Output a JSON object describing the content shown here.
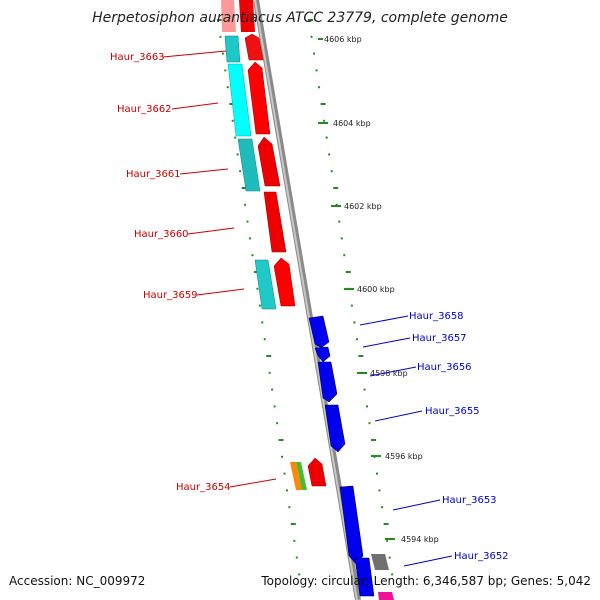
{
  "title": "Herpetosiphon aurantiacus ATCC 23779, complete genome",
  "footer": {
    "accession_label": "Accession: NC_009972",
    "summary": "Topology: circular; Length: 6,346,587 bp; Genes: 5,042"
  },
  "colors": {
    "reverse_label": "#cc0000",
    "forward_label": "#0000cc",
    "forward_gene": "#0000ee",
    "reverse_gene": "#ee0000",
    "cog_cyan": "#00cccc",
    "backbone": "#888888",
    "tick": "#228b22"
  },
  "kbp_ticks": [
    {
      "label": "4606 kbp"
    },
    {
      "label": "4604 kbp"
    },
    {
      "label": "4602 kbp"
    },
    {
      "label": "4600 kbp"
    },
    {
      "label": "4598 kbp"
    },
    {
      "label": "4596 kbp"
    },
    {
      "label": "4594 kbp"
    }
  ],
  "reverse_genes": [
    {
      "label": "Haur_3663"
    },
    {
      "label": "Haur_3662"
    },
    {
      "label": "Haur_3661"
    },
    {
      "label": "Haur_3660"
    },
    {
      "label": "Haur_3659"
    },
    {
      "label": "Haur_3654"
    }
  ],
  "forward_genes": [
    {
      "label": "Haur_3658"
    },
    {
      "label": "Haur_3657"
    },
    {
      "label": "Haur_3656"
    },
    {
      "label": "Haur_3655"
    },
    {
      "label": "Haur_3653"
    },
    {
      "label": "Haur_3652"
    }
  ]
}
